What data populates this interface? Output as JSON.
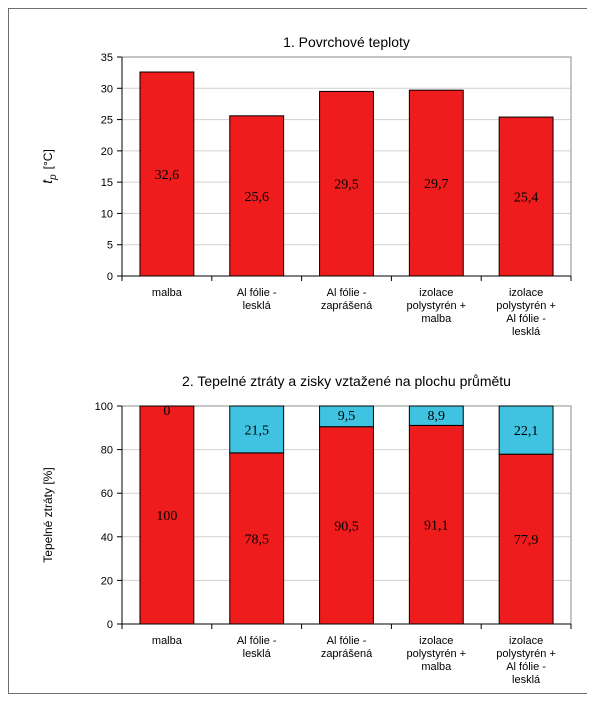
{
  "chart_data": [
    {
      "type": "bar",
      "title": "1. Povrchové teploty",
      "ylabel_symbol": "t",
      "ylabel_subscript": "p",
      "ylabel_unit": "[°C]",
      "ylim": [
        0,
        35
      ],
      "yticks": [
        0,
        5,
        10,
        15,
        20,
        25,
        30,
        35
      ],
      "categories": [
        [
          "malba"
        ],
        [
          "Al fólie -",
          "lesklá"
        ],
        [
          "Al fólie -",
          "zaprášená"
        ],
        [
          "izolace",
          "polystyrén +",
          "malba"
        ],
        [
          "izolace",
          "polystyrén +",
          "Al fólie -",
          "lesklá"
        ]
      ],
      "values": [
        32.6,
        25.6,
        29.5,
        29.7,
        25.4
      ],
      "labels": [
        "32,6",
        "25,6",
        "29,5",
        "29,7",
        "25,4"
      ],
      "color": "#ee1c1c",
      "grid": true
    },
    {
      "type": "bar",
      "stacked": true,
      "title": "2. Tepelné ztráty a zisky vztažené na plochu průmětu",
      "ylabel": "Tepelné ztráty [%]",
      "ylim": [
        0,
        100
      ],
      "yticks": [
        0,
        20,
        40,
        60,
        80,
        100
      ],
      "categories": [
        [
          "malba"
        ],
        [
          "Al fólie -",
          "lesklá"
        ],
        [
          "Al fólie -",
          "zaprášená"
        ],
        [
          "izolace",
          "polystyrén +",
          "malba"
        ],
        [
          "izolace",
          "polystyrén +",
          "Al fólie -",
          "lesklá"
        ]
      ],
      "series": [
        {
          "values": [
            100,
            78.5,
            90.5,
            91.1,
            77.9
          ],
          "labels": [
            "100",
            "78,5",
            "90,5",
            "91,1",
            "77,9"
          ],
          "color": "#ee1c1c"
        },
        {
          "values": [
            0,
            21.5,
            9.5,
            8.9,
            22.1
          ],
          "labels": [
            "0",
            "21,5",
            "9,5",
            "8,9",
            "22,1"
          ],
          "color": "#3fc3e1"
        }
      ],
      "grid": true
    }
  ]
}
